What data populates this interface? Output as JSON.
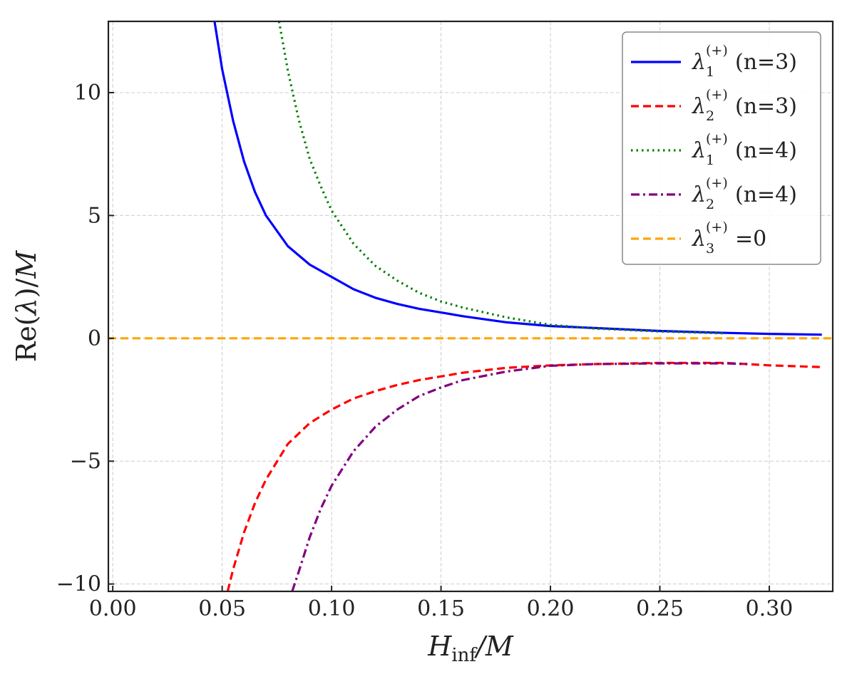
{
  "chart_data": {
    "type": "line",
    "xlabel": "H_inf/M",
    "ylabel": "Re(λ)/M",
    "xlim": [
      -0.002,
      0.329
    ],
    "ylim": [
      -10.3,
      12.9
    ],
    "grid": true,
    "legend_position": "top-right",
    "x_ticks": [
      0.0,
      0.05,
      0.1,
      0.15,
      0.2,
      0.25,
      0.3
    ],
    "x_tick_labels": [
      "0.00",
      "0.05",
      "0.10",
      "0.15",
      "0.20",
      "0.25",
      "0.30"
    ],
    "y_ticks": [
      -10,
      -5,
      0,
      5,
      10
    ],
    "y_tick_labels": [
      "−10",
      "−5",
      "0",
      "5",
      "10"
    ],
    "series": [
      {
        "name": "λ1(+) (n=3)",
        "symbol": "λ",
        "subscript": "1",
        "superscript": "(+)",
        "suffix": " (n=3)",
        "color": "#0000ff",
        "dash": "solid",
        "x": [
          0.0465,
          0.05,
          0.055,
          0.06,
          0.065,
          0.07,
          0.08,
          0.09,
          0.1,
          0.11,
          0.12,
          0.13,
          0.14,
          0.15,
          0.16,
          0.18,
          0.2,
          0.22,
          0.25,
          0.28,
          0.3,
          0.324
        ],
        "y": [
          12.9,
          10.95,
          8.85,
          7.2,
          5.95,
          5.0,
          3.75,
          3.0,
          2.5,
          2.0,
          1.65,
          1.4,
          1.2,
          1.05,
          0.9,
          0.65,
          0.5,
          0.42,
          0.3,
          0.22,
          0.18,
          0.15
        ]
      },
      {
        "name": "λ2(+) (n=3)",
        "symbol": "λ",
        "subscript": "2",
        "superscript": "(+)",
        "suffix": " (n=3)",
        "color": "#ff0000",
        "dash": "dashed",
        "x": [
          0.0525,
          0.055,
          0.06,
          0.065,
          0.07,
          0.08,
          0.09,
          0.1,
          0.11,
          0.12,
          0.13,
          0.14,
          0.15,
          0.16,
          0.18,
          0.2,
          0.22,
          0.25,
          0.28,
          0.3,
          0.324
        ],
        "y": [
          -10.3,
          -9.4,
          -7.9,
          -6.7,
          -5.75,
          -4.3,
          -3.45,
          -2.9,
          -2.45,
          -2.15,
          -1.9,
          -1.7,
          -1.55,
          -1.4,
          -1.2,
          -1.1,
          -1.05,
          -1.0,
          -1.0,
          -1.1,
          -1.17
        ]
      },
      {
        "name": "λ1(+) (n=4)",
        "symbol": "λ",
        "subscript": "1",
        "superscript": "(+)",
        "suffix": " (n=4)",
        "color": "#008000",
        "dash": "dotted",
        "x": [
          0.076,
          0.08,
          0.085,
          0.09,
          0.095,
          0.1,
          0.11,
          0.12,
          0.13,
          0.14,
          0.15,
          0.16,
          0.18,
          0.2,
          0.22,
          0.25,
          0.28
        ],
        "y": [
          12.9,
          10.9,
          8.9,
          7.3,
          6.2,
          5.2,
          3.85,
          2.95,
          2.35,
          1.85,
          1.5,
          1.25,
          0.85,
          0.55,
          0.4,
          0.28,
          0.2
        ]
      },
      {
        "name": "λ2(+) (n=4)",
        "symbol": "λ",
        "subscript": "2",
        "superscript": "(+)",
        "suffix": " (n=4)",
        "color": "#800080",
        "dash": "dashdot",
        "x": [
          0.082,
          0.085,
          0.09,
          0.095,
          0.1,
          0.11,
          0.12,
          0.13,
          0.14,
          0.15,
          0.16,
          0.18,
          0.2,
          0.22,
          0.25,
          0.28,
          0.29
        ],
        "y": [
          -10.3,
          -9.5,
          -8.1,
          -6.95,
          -6.0,
          -4.6,
          -3.6,
          -2.9,
          -2.35,
          -2.0,
          -1.7,
          -1.35,
          -1.12,
          -1.05,
          -1.02,
          -1.02,
          -1.05
        ]
      },
      {
        "name": "λ3(+)=0",
        "symbol": "λ",
        "subscript": "3",
        "superscript": "(+)",
        "suffix": "=0",
        "color": "#ffa500",
        "dash": "dashed",
        "x": [
          -0.002,
          0.329
        ],
        "y": [
          0,
          0
        ]
      }
    ]
  }
}
